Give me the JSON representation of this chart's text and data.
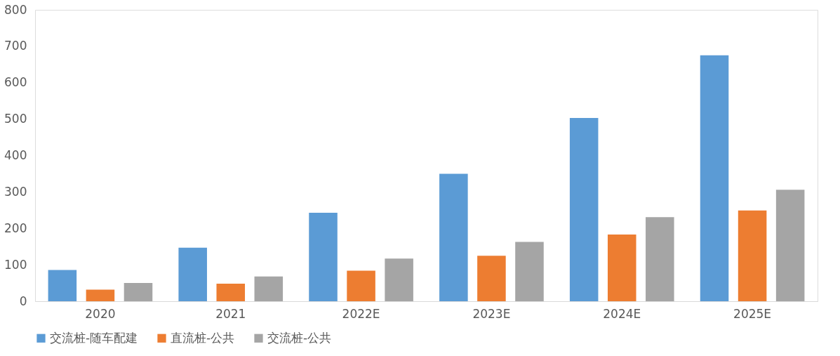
{
  "chart_data": {
    "type": "bar",
    "categories": [
      "2020",
      "2021",
      "2022E",
      "2023E",
      "2024E",
      "2025E"
    ],
    "series": [
      {
        "name": "交流桩-随车配建",
        "color": "#5b9bd5",
        "values": [
          86,
          147,
          243,
          350,
          503,
          675
        ]
      },
      {
        "name": "直流桩-公共",
        "color": "#ed7d31",
        "values": [
          32,
          48,
          84,
          125,
          183,
          249
        ]
      },
      {
        "name": "交流桩-公共",
        "color": "#a5a5a5",
        "values": [
          50,
          68,
          117,
          163,
          231,
          306
        ]
      }
    ],
    "ylim": [
      0,
      800
    ],
    "yticks": [
      0,
      100,
      200,
      300,
      400,
      500,
      600,
      700,
      800
    ],
    "grid": false,
    "legend": "bottom"
  }
}
